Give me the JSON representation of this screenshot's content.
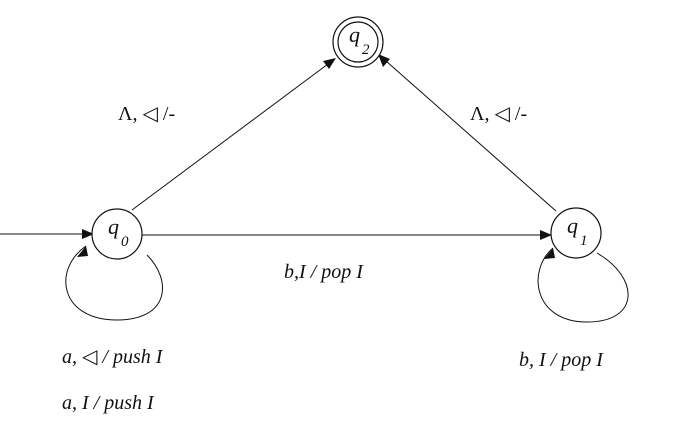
{
  "diagram": {
    "states": {
      "q0": {
        "letter": "q",
        "sub": "0"
      },
      "q1": {
        "letter": "q",
        "sub": "1"
      },
      "q2": {
        "letter": "q",
        "sub": "2"
      }
    },
    "transitions": {
      "q0_to_q2": "Λ, ◁ /-",
      "q1_to_q2": "Λ, ◁ /-",
      "q0_to_q1": "b,I / pop I",
      "q0_loop_1": "a, ◁ / push I",
      "q0_loop_2": "a, I / push I",
      "q1_loop": "b, I / pop I"
    }
  }
}
